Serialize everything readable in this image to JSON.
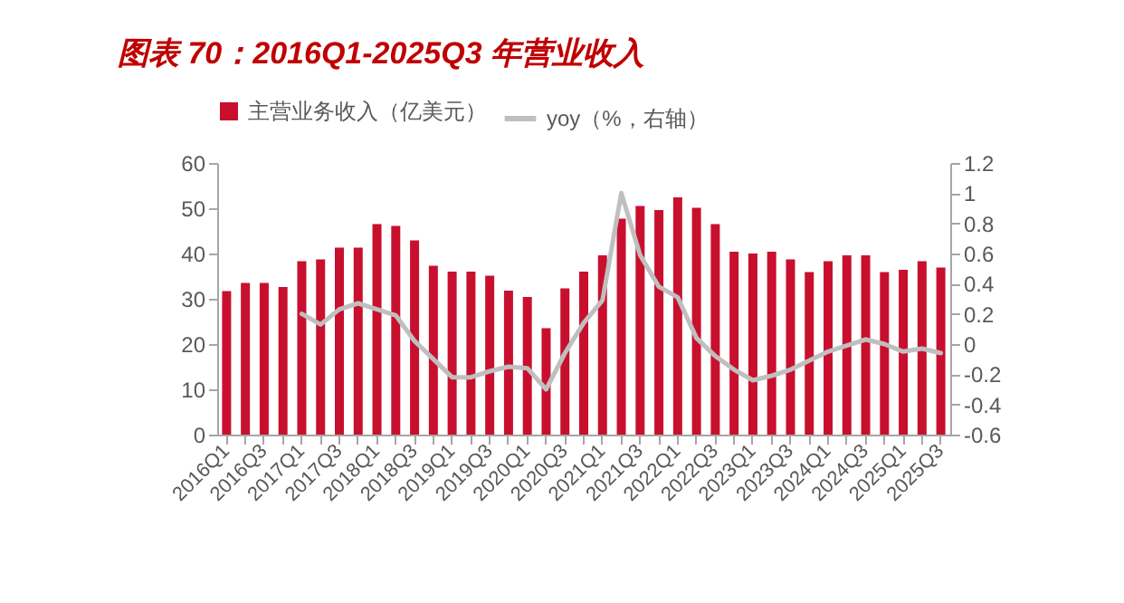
{
  "chart_data": {
    "type": "bar",
    "title": "图表 70：2016Q1-2025Q3 年营业收入",
    "categories": [
      "2016Q1",
      null,
      "2016Q3",
      null,
      "2017Q1",
      null,
      "2017Q3",
      null,
      "2018Q1",
      null,
      "2018Q3",
      null,
      "2019Q1",
      null,
      "2019Q3",
      null,
      "2020Q1",
      null,
      "2020Q3",
      null,
      "2021Q1",
      null,
      "2021Q3",
      null,
      "2022Q1",
      null,
      "2022Q3",
      null,
      "2023Q1",
      null,
      "2023Q3",
      null,
      "2024Q1",
      null,
      "2024Q3",
      null,
      "2025Q1",
      null,
      "2025Q3"
    ],
    "series": [
      {
        "name": "主营业务收入（亿美元）",
        "color": "#c8102e",
        "values": [
          31.7,
          33.5,
          33.5,
          32.6,
          38.3,
          38.7,
          41.3,
          41.3,
          46.5,
          46.1,
          42.9,
          37.3,
          36,
          36,
          35.1,
          31.8,
          30.4,
          23.5,
          32.3,
          36,
          39.6,
          47.7,
          50.5,
          49.6,
          52.4,
          50.1,
          46.5,
          40.4,
          40,
          40.4,
          38.7,
          35.9,
          38.3,
          39.6,
          39.6,
          35.9,
          36.4,
          38.3,
          36.9
        ]
      },
      {
        "name": "yoy（%，右轴）",
        "type": "line",
        "axis": "y2",
        "color": "#bfbfbf",
        "values": [
          null,
          null,
          null,
          null,
          0.2,
          0.13,
          0.23,
          0.27,
          0.23,
          0.19,
          0.02,
          -0.1,
          -0.22,
          -0.22,
          -0.18,
          -0.15,
          -0.16,
          -0.3,
          -0.06,
          0.14,
          0.29,
          1.0,
          0.59,
          0.38,
          0.31,
          0.04,
          -0.08,
          -0.17,
          -0.24,
          -0.21,
          -0.17,
          -0.11,
          -0.05,
          -0.01,
          0.03,
          0,
          -0.05,
          -0.03,
          -0.06
        ]
      }
    ],
    "ylim": [
      0,
      60
    ],
    "yticks": [
      0,
      10,
      20,
      30,
      40,
      50,
      60
    ],
    "y2lim": [
      -0.6,
      1.2
    ],
    "y2ticks": [
      -0.6,
      -0.4,
      -0.2,
      0,
      0.2,
      0.4,
      0.6,
      0.8,
      1,
      1.2
    ],
    "grid": false,
    "legend": "top"
  }
}
